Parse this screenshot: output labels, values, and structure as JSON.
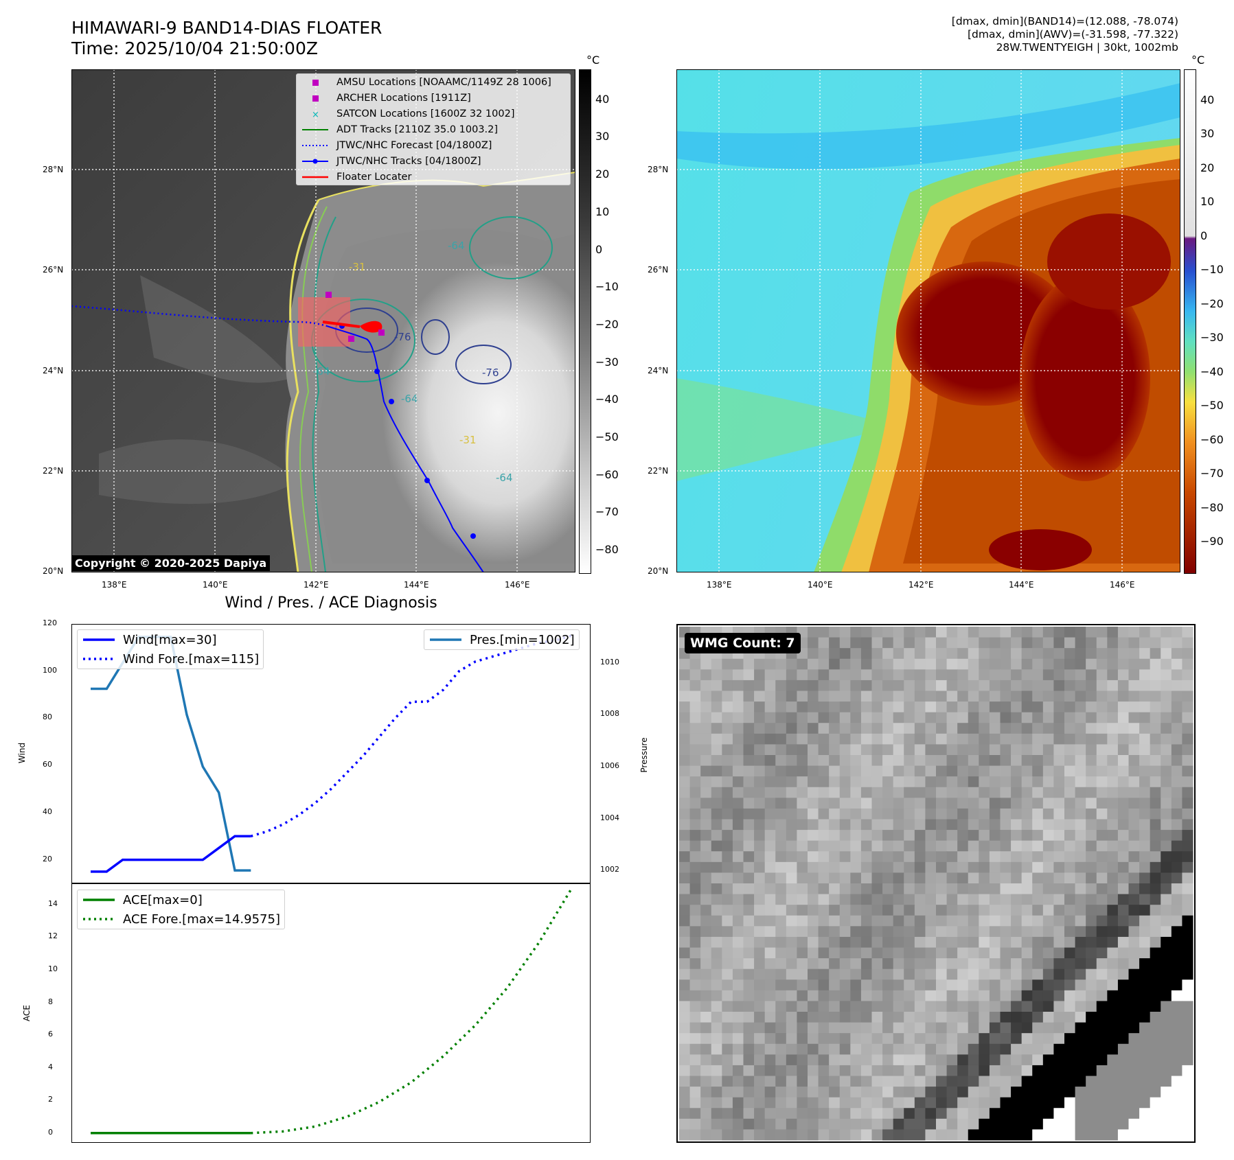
{
  "header": {
    "title_line1": "HIMAWARI-9 BAND14-DIAS FLOATER",
    "title_line2": "Time: 2025/10/04 21:50:00Z",
    "info_line1": "[dmax, dmin](BAND14)=(12.088, -78.074)",
    "info_line2": "[dmax, dmin](AWV)=(-31.598, -77.322)",
    "info_line3": "28W.TWENTYEIGH | 30kt, 1002mb"
  },
  "map": {
    "lat_labels": [
      "28°N",
      "26°N",
      "24°N",
      "22°N",
      "20°N"
    ],
    "lon_labels": [
      "138°E",
      "140°E",
      "142°E",
      "144°E",
      "146°E"
    ],
    "copyright": "Copyright © 2020-2025 Dapiya",
    "legend": [
      {
        "label": "AMSU Locations [NOAAMC/1149Z 28 1006]",
        "symbol": "square",
        "color": "#c000c0"
      },
      {
        "label": "ARCHER Locations [1911Z]",
        "symbol": "square",
        "color": "#c000c0"
      },
      {
        "label": "SATCON Locations [1600Z 32 1002]",
        "symbol": "x",
        "color": "#00b8b8"
      },
      {
        "label": "ADT Tracks [2110Z 35.0 1003.2]",
        "symbol": "line",
        "color": "#008000"
      },
      {
        "label": "JTWC/NHC Forecast [04/1800Z]",
        "symbol": "dotted",
        "color": "#0000ff"
      },
      {
        "label": "JTWC/NHC Tracks [04/1800Z]",
        "symbol": "line-dot",
        "color": "#0000ff"
      },
      {
        "label": "Floater Locater",
        "symbol": "line",
        "color": "#ff0000"
      }
    ],
    "contour_labels": [
      "-64",
      "-64",
      "-64",
      "-64",
      "-76",
      "-76",
      "-31",
      "-31"
    ]
  },
  "colorbar_left": {
    "unit": "°C",
    "ticks": [
      "40",
      "30",
      "20",
      "10",
      "0",
      "−10",
      "−20",
      "−30",
      "−40",
      "−50",
      "−60",
      "−70",
      "−80"
    ]
  },
  "colorbar_right": {
    "unit": "°C",
    "ticks": [
      "40",
      "30",
      "20",
      "10",
      "0",
      "−10",
      "−20",
      "−30",
      "−40",
      "−50",
      "−60",
      "−70",
      "−80",
      "−90"
    ]
  },
  "diagnosis": {
    "title": "Wind / Pres. / ACE Diagnosis",
    "wind_ylabel": "Wind",
    "pres_ylabel": "Pressure",
    "ace_ylabel": "ACE",
    "wind_ticks": [
      "120",
      "100",
      "80",
      "60",
      "40",
      "20"
    ],
    "pres_ticks": [
      "1010",
      "1008",
      "1006",
      "1004",
      "1002"
    ],
    "ace_ticks": [
      "14",
      "12",
      "10",
      "8",
      "6",
      "4",
      "2",
      "0"
    ],
    "legend_wind": [
      {
        "label": "Wind[max=30]",
        "color": "#0000ff",
        "style": "solid"
      },
      {
        "label": "Wind Fore.[max=115]",
        "color": "#0000ff",
        "style": "dotted"
      }
    ],
    "legend_pres": [
      {
        "label": "Pres.[min=1002]",
        "color": "#1f77b4",
        "style": "solid"
      }
    ],
    "legend_ace": [
      {
        "label": "ACE[max=0]",
        "color": "#008000",
        "style": "solid"
      },
      {
        "label": "ACE Fore.[max=14.9575]",
        "color": "#008000",
        "style": "dotted"
      }
    ]
  },
  "wmg": {
    "label": "WMG Count: 7"
  },
  "chart_data": [
    {
      "type": "line",
      "title": "Wind / Pres. / ACE Diagnosis",
      "ylabel": "Wind",
      "ylim": [
        10,
        120
      ],
      "series": [
        {
          "name": "Wind[max=30]",
          "x": [
            0,
            1,
            2,
            3,
            4,
            5,
            6,
            7,
            8,
            9,
            10
          ],
          "values": [
            15,
            15,
            20,
            20,
            20,
            20,
            20,
            20,
            25,
            30,
            30
          ]
        },
        {
          "name": "Wind Fore.[max=115]",
          "x": [
            10,
            11,
            12,
            13,
            14,
            15,
            16,
            17,
            18,
            19,
            20,
            21,
            22,
            23,
            24,
            25,
            26,
            27,
            28,
            29,
            30
          ],
          "values": [
            30,
            32,
            35,
            39,
            44,
            50,
            57,
            64,
            72,
            80,
            87,
            87,
            92,
            100,
            104,
            106,
            108,
            110,
            112,
            113,
            115
          ]
        },
        {
          "name": "Pres.[min=1002]",
          "axis": "right",
          "x": [
            0,
            1,
            2,
            3,
            4,
            5,
            6,
            7,
            8,
            9,
            10
          ],
          "values": [
            1009,
            1009,
            1010,
            1011,
            1011,
            1011,
            1008,
            1006,
            1005,
            1002,
            1002
          ]
        }
      ],
      "y2label": "Pressure",
      "y2lim": [
        1001.5,
        1011.5
      ]
    },
    {
      "type": "line",
      "ylabel": "ACE",
      "ylim": [
        -0.6,
        15.3
      ],
      "series": [
        {
          "name": "ACE[max=0]",
          "x": [
            0,
            10
          ],
          "values": [
            0,
            0
          ]
        },
        {
          "name": "ACE Fore.[max=14.9575]",
          "x": [
            10,
            12,
            14,
            16,
            18,
            20,
            22,
            24,
            26,
            28,
            30
          ],
          "values": [
            0,
            0.1,
            0.4,
            1.0,
            1.9,
            3.1,
            4.7,
            6.6,
            8.9,
            11.7,
            14.96
          ]
        }
      ]
    }
  ]
}
